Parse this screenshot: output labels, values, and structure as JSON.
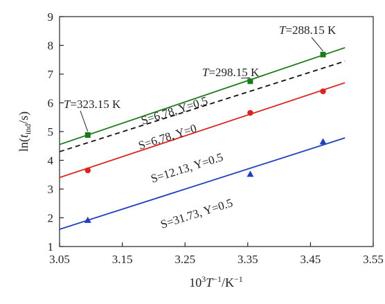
{
  "chart_data": {
    "type": "scatter",
    "xlabel": {
      "prefix": "10",
      "sup1": "3",
      "italic": "T",
      "sup2": "−1",
      "suffix": "/K",
      "sup3": "−1"
    },
    "ylabel": {
      "prefix": "ln(",
      "italic": "t",
      "sub": "ind",
      "suffix": "/s)"
    },
    "xlim": [
      3.05,
      3.55
    ],
    "ylim": [
      1,
      9
    ],
    "xticks": [
      3.05,
      3.15,
      3.25,
      3.35,
      3.45,
      3.55
    ],
    "xtick_labels": [
      "3.05",
      "3.15",
      "3.25",
      "3.35",
      "3.45",
      "3.55"
    ],
    "yticks": [
      1,
      2,
      3,
      4,
      5,
      6,
      7,
      8,
      9
    ],
    "ytick_labels": [
      "1",
      "2",
      "3",
      "4",
      "5",
      "6",
      "7",
      "8",
      "9"
    ],
    "grid": false,
    "series": [
      {
        "name": "S=6.78, Y=0.5",
        "color": "#1a7a1a",
        "marker": "square",
        "x": [
          3.095,
          3.354,
          3.47
        ],
        "y": [
          4.88,
          6.75,
          7.68
        ],
        "fit": {
          "x": [
            3.05,
            3.505
          ],
          "y": [
            4.55,
            7.92
          ],
          "dash": false
        }
      },
      {
        "name": "S=6.78, Y=0",
        "color": "#111111",
        "marker": "none",
        "x": [],
        "y": [],
        "fit": {
          "x": [
            3.05,
            3.505
          ],
          "y": [
            4.3,
            7.45
          ],
          "dash": true
        }
      },
      {
        "name": "S=12.13, Y=0.5",
        "color": "#dd2222",
        "marker": "circle",
        "x": [
          3.095,
          3.354,
          3.47
        ],
        "y": [
          3.65,
          5.65,
          6.4
        ],
        "fit": {
          "x": [
            3.05,
            3.505
          ],
          "y": [
            3.4,
            6.7
          ],
          "dash": false
        }
      },
      {
        "name": "S=31.73, Y=0.5",
        "color": "#1f3fbf",
        "marker": "triangle",
        "x": [
          3.095,
          3.354,
          3.47
        ],
        "y": [
          1.92,
          3.52,
          4.65
        ],
        "fit": {
          "x": [
            3.05,
            3.505
          ],
          "y": [
            1.6,
            4.78
          ],
          "dash": false
        }
      }
    ],
    "annotations": [
      {
        "italic": "T",
        "text": "=323.15 K"
      },
      {
        "italic": "T",
        "text": "=298.15 K"
      },
      {
        "italic": "T",
        "text": "=288.15 K"
      }
    ]
  }
}
